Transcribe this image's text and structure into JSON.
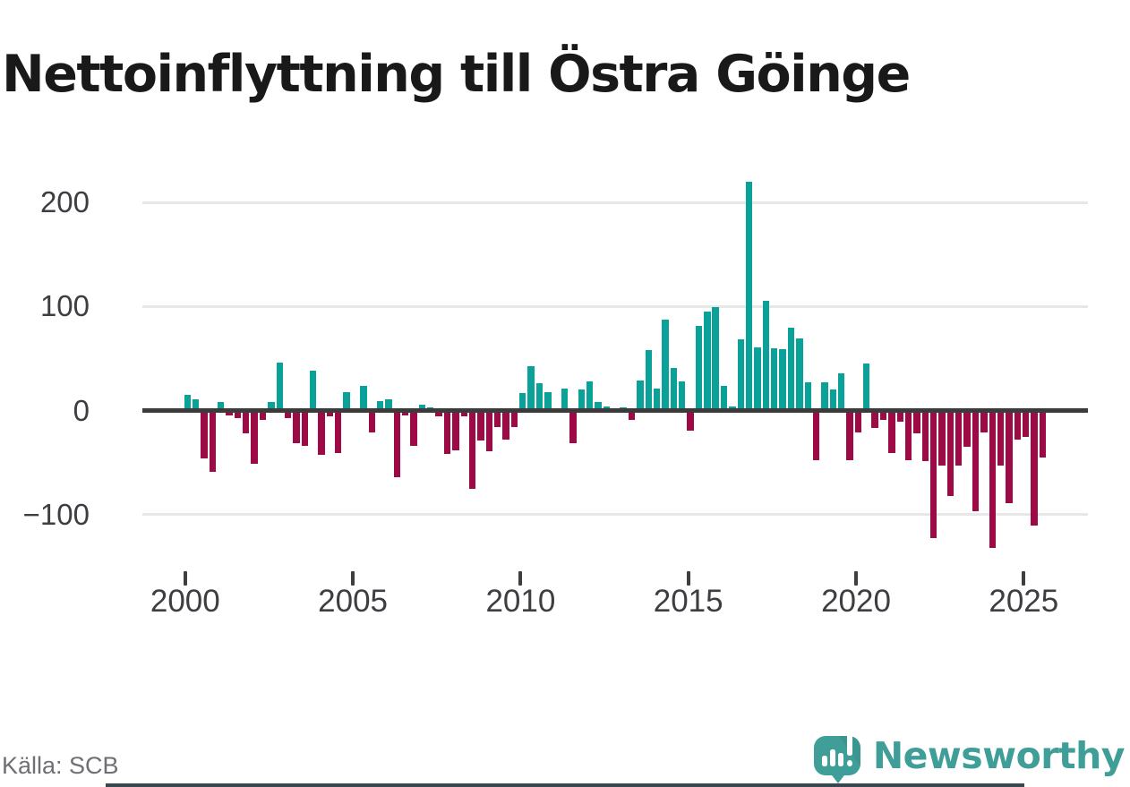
{
  "title": "Nettoinflyttning till Östra Göinge",
  "source": "Källa: SCB",
  "brand": {
    "name": "Newsworthy",
    "icon": "newsworthy-speech-bubble-chart-icon",
    "color": "#3f9e98"
  },
  "colors": {
    "positive_bar": "#09a198",
    "negative_bar": "#9e0a46",
    "zero_axis": "#3b3b3b",
    "gridline": "#e7e7e7",
    "axis_label": "#3d3d42",
    "source_text": "#6f6f74",
    "title_text": "#191919"
  },
  "chart_data": {
    "type": "bar",
    "title": "Nettoinflyttning till Östra Göinge",
    "xlabel": "",
    "ylabel": "",
    "frequency": "quarterly",
    "start_period": "2000-Q1",
    "end_period": "2025-Q3",
    "x_tick_labels": [
      "2000",
      "2005",
      "2010",
      "2015",
      "2020",
      "2025"
    ],
    "y_ticks": [
      200,
      100,
      0,
      -100
    ],
    "y_tick_labels": [
      "200",
      "100",
      "0",
      "−100"
    ],
    "ylim": [
      -140,
      240
    ],
    "grid": "horizontal",
    "legend_position": "none",
    "series": [
      {
        "name": "Nettoinflyttning",
        "values": [
          15,
          11,
          -46,
          -59,
          8,
          -5,
          -7,
          -22,
          -51,
          -9,
          8,
          46,
          -7,
          -31,
          -34,
          38,
          -43,
          -6,
          -41,
          18,
          2,
          24,
          -21,
          9,
          11,
          -64,
          -5,
          -34,
          6,
          3,
          -6,
          -42,
          -38,
          -6,
          -75,
          -29,
          -39,
          -16,
          -28,
          -16,
          17,
          43,
          26,
          18,
          0,
          21,
          -31,
          20,
          28,
          8,
          4,
          0,
          3,
          -9,
          29,
          58,
          21,
          87,
          41,
          28,
          -19,
          81,
          95,
          99,
          24,
          4,
          68,
          220,
          61,
          105,
          60,
          59,
          80,
          69,
          27,
          -48,
          27,
          20,
          36,
          -48,
          -21,
          45,
          -17,
          -9,
          -41,
          -11,
          -48,
          -22,
          -49,
          -123,
          -53,
          -82,
          -53,
          -35,
          -97,
          -21,
          -132,
          -53,
          -89,
          -28,
          -25,
          -111,
          -45
        ]
      }
    ]
  }
}
